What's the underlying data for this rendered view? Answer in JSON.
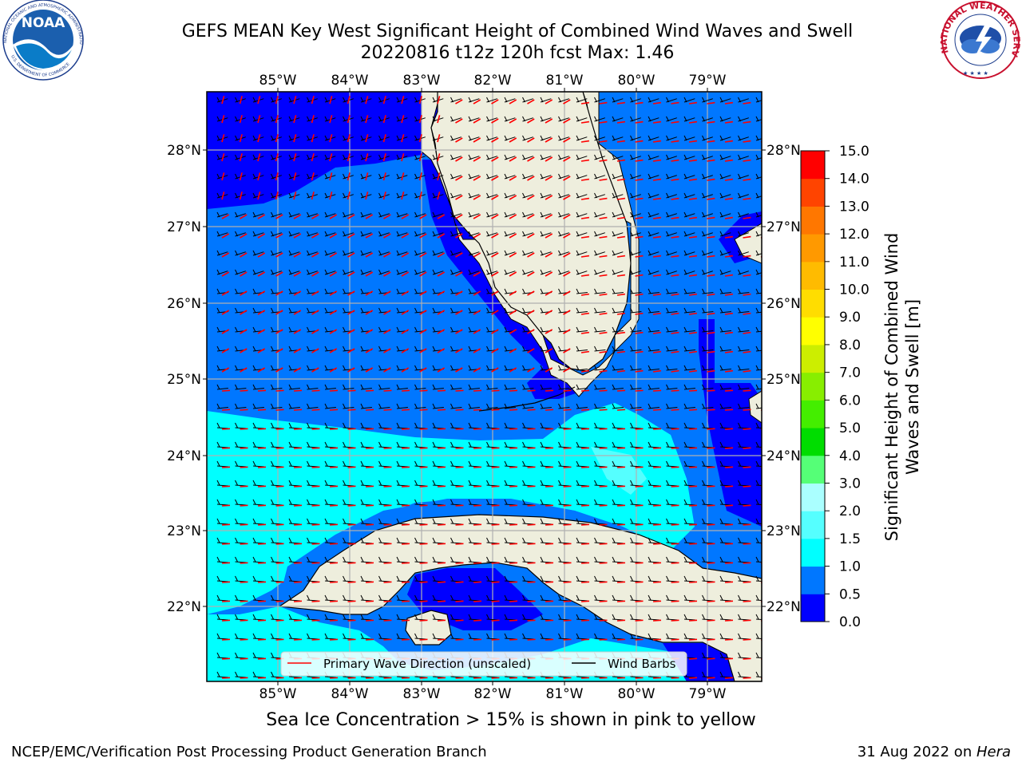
{
  "header": {
    "title_line1": "GEFS MEAN Key West Significant Height of Combined Wind Waves and Swell",
    "title_line2": "20220816 t12z 120h fcst   Max: 1.46"
  },
  "logos": {
    "left": {
      "name": "NOAA",
      "ring_text": "NATIONAL OCEANIC AND ATMOSPHERIC ADMINISTRATION",
      "ring_text_bottom": "U.S. DEPARTMENT OF COMMERCE"
    },
    "right": {
      "ring_text": "NATIONAL WEATHER SERVICE"
    }
  },
  "map": {
    "lon_labels": [
      "85°W",
      "84°W",
      "83°W",
      "82°W",
      "81°W",
      "80°W",
      "79°W"
    ],
    "lat_labels": [
      "28°N",
      "27°N",
      "26°N",
      "25°N",
      "24°N",
      "23°N",
      "22°N"
    ],
    "legend": {
      "primary_wave": "Primary Wave Direction (unscaled)",
      "wind_barbs": "Wind Barbs"
    },
    "colors": {
      "land": "#eeeedd",
      "dark_blue": "#0000ff",
      "mid_blue": "#0077ff",
      "cyan": "#00ffff",
      "light_cyan": "#55ffff",
      "pale_cyan": "#aaffff",
      "grid": "#b0b0b0",
      "arrow": "#ff0000"
    }
  },
  "colorbar": {
    "label": "Significant Height of Combined Wind Waves and Swell [m]",
    "ticks": [
      "0.0",
      "0.5",
      "1.0",
      "1.5",
      "2.0",
      "3.0",
      "4.0",
      "5.0",
      "6.0",
      "7.0",
      "8.0",
      "9.0",
      "10.0",
      "11.0",
      "12.0",
      "13.0",
      "14.0",
      "15.0"
    ],
    "colors": [
      "#0000ff",
      "#0077ff",
      "#00ffff",
      "#55ffff",
      "#aaffff",
      "#55ff77",
      "#00dd00",
      "#44ee00",
      "#88ee00",
      "#ccee00",
      "#ffff00",
      "#ffdd00",
      "#ffbb00",
      "#ff9900",
      "#ff7700",
      "#ff4400",
      "#ff0000"
    ]
  },
  "note": "Sea Ice Concentration > 15% is shown in pink to yellow",
  "footer": {
    "left": "NCEP/EMC/Verification Post Processing Product Generation Branch",
    "right_prefix": "31 Aug 2022 on ",
    "right_machine": "Hera"
  }
}
